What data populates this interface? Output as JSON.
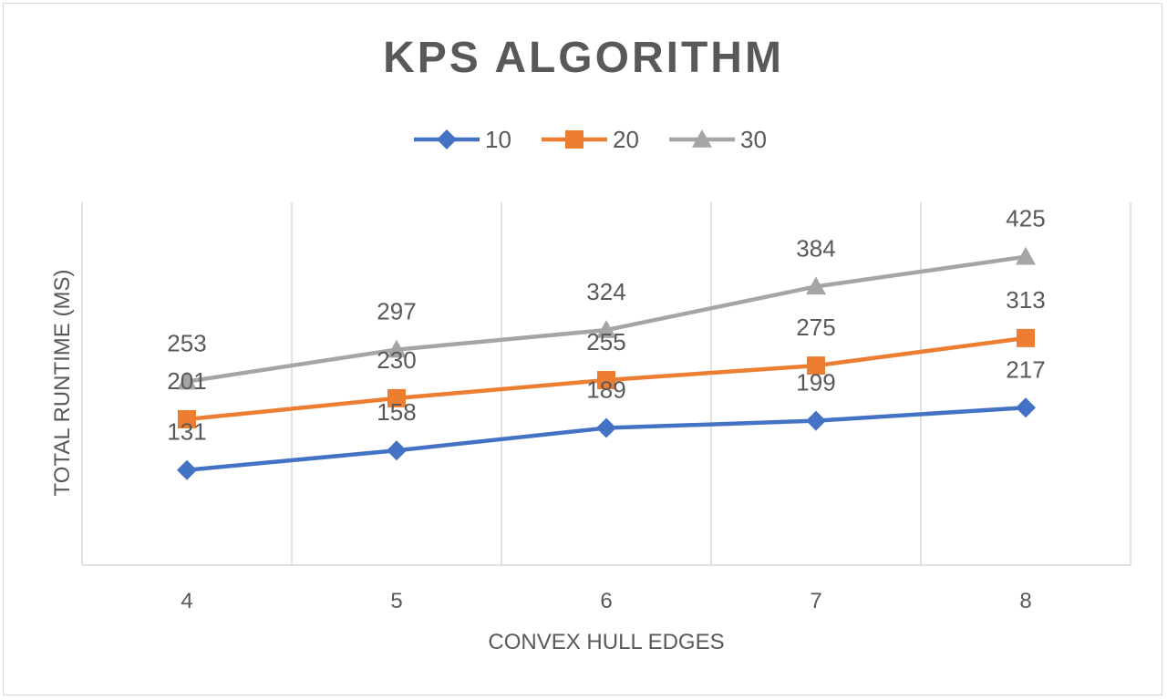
{
  "chart_data": {
    "type": "line",
    "title": "KPS ALGORITHM",
    "xlabel": "CONVEX HULL EDGES",
    "ylabel": "TOTAL RUNTIME (MS)",
    "categories": [
      "4",
      "5",
      "6",
      "7",
      "8"
    ],
    "ylim": [
      0,
      500
    ],
    "grid": "vertical",
    "legend": "top",
    "series": [
      {
        "name": "10",
        "color": "#4472C4",
        "marker": "diamond",
        "values": [
          131,
          158,
          189,
          199,
          217
        ]
      },
      {
        "name": "20",
        "color": "#ED7D31",
        "marker": "square",
        "values": [
          201,
          230,
          255,
          275,
          313
        ]
      },
      {
        "name": "30",
        "color": "#A5A5A5",
        "marker": "triangle",
        "values": [
          253,
          297,
          324,
          384,
          425
        ]
      }
    ]
  }
}
